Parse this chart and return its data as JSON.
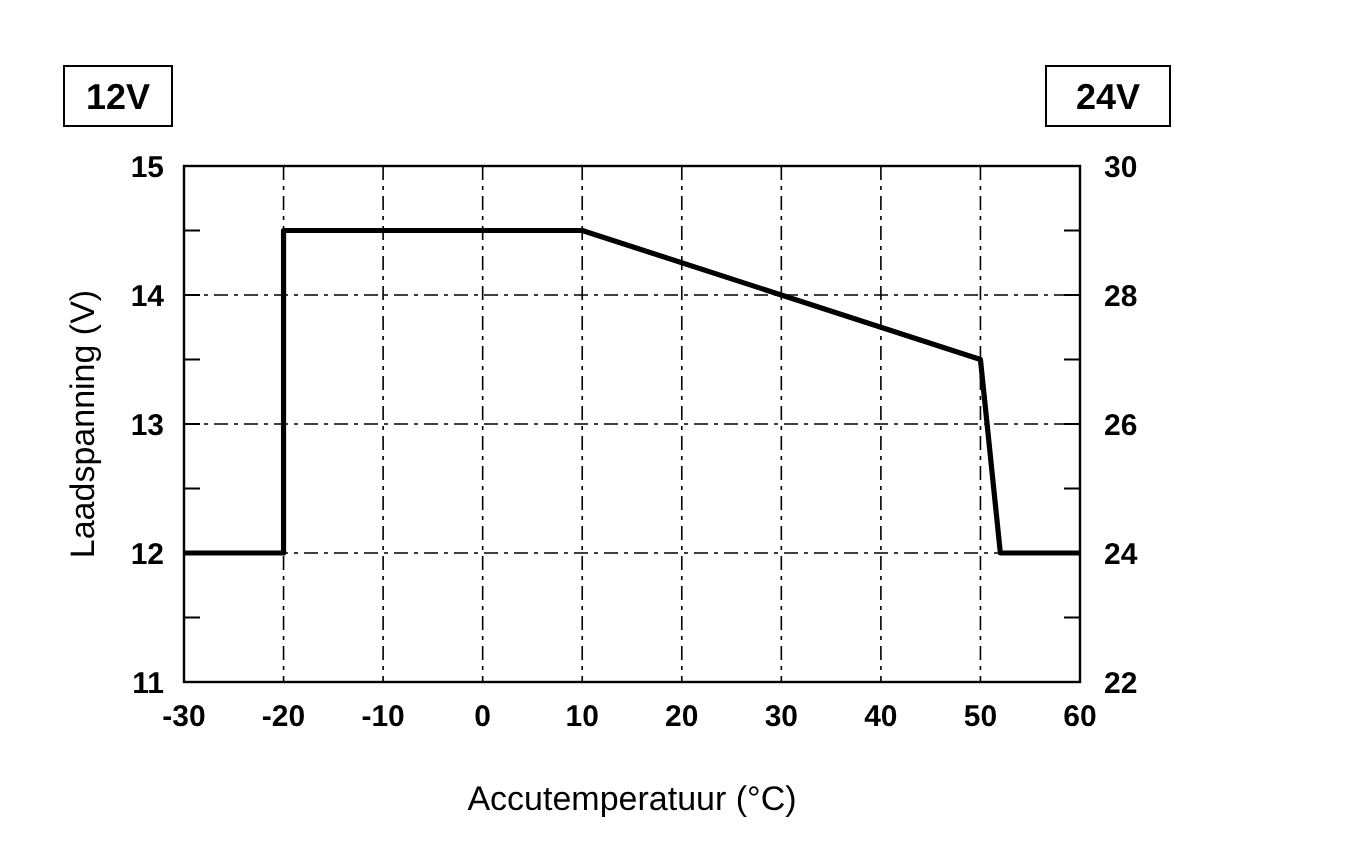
{
  "chart_data": {
    "type": "line",
    "xlabel": "Accutemperatuur (°C)",
    "ylabel": "Laadspanning (V)",
    "annotations": [
      "12V",
      "24V"
    ],
    "x": [
      -30,
      -20,
      -20,
      10,
      50,
      52,
      60
    ],
    "series": [
      {
        "color": "#000000",
        "values": [
          12,
          12,
          14.5,
          14.5,
          13.5,
          12,
          12
        ]
      }
    ],
    "xlim": [
      -30,
      60
    ],
    "xticks": [
      -30,
      -20,
      -10,
      0,
      10,
      20,
      30,
      40,
      50,
      60
    ],
    "ylim": [
      11,
      15
    ],
    "yticks": [
      11,
      {
        "value": 11.5,
        "label": null
      },
      12,
      {
        "value": 12.5,
        "label": null
      },
      13,
      {
        "value": 13.5,
        "label": null
      },
      14,
      {
        "value": 14.5,
        "label": null
      },
      15
    ],
    "y2lim": [
      22,
      30
    ],
    "y2ticks": [
      22,
      {
        "value": 23,
        "label": null
      },
      24,
      {
        "value": 25,
        "label": null
      },
      26,
      {
        "value": 27,
        "label": null
      },
      28,
      {
        "value": 29,
        "label": null
      },
      30
    ],
    "grid": true,
    "marker": "none",
    "line_style": "solid"
  }
}
